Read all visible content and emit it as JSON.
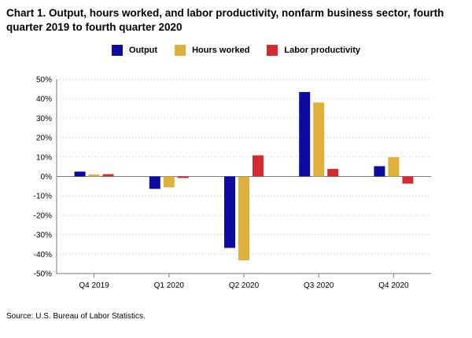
{
  "colors": {
    "output": "#0d0ba1",
    "hours": "#e0b13a",
    "productivity": "#d42a30",
    "grid": "#bbbbbb",
    "axis": "#7a7a7a"
  },
  "chart_data": {
    "type": "bar",
    "title": "Chart 1. Output, hours worked, and labor productivity, nonfarm business sector, fourth quarter 2019 to fourth quarter 2020",
    "categories": [
      "Q4 2019",
      "Q1 2020",
      "Q2 2020",
      "Q3 2020",
      "Q4 2020"
    ],
    "series": [
      {
        "name": "Output",
        "values": [
          2.5,
          -6.4,
          -36.8,
          43.5,
          5.3
        ]
      },
      {
        "name": "Hours worked",
        "values": [
          1.0,
          -5.6,
          -43.2,
          38.1,
          9.9
        ]
      },
      {
        "name": "Labor productivity",
        "values": [
          1.2,
          -0.8,
          10.9,
          3.9,
          -3.7
        ]
      }
    ],
    "ylim": [
      -50,
      50
    ],
    "yticks": [
      -50,
      -40,
      -30,
      -20,
      -10,
      0,
      10,
      20,
      30,
      40,
      50
    ],
    "ytick_labels": [
      "-50%",
      "-40%",
      "-30%",
      "-20%",
      "-10%",
      "0%",
      "10%",
      "20%",
      "30%",
      "40%",
      "50%"
    ],
    "grid": true,
    "legend_position": "top-center",
    "source": "Source: U.S. Bureau of Labor Statistics."
  }
}
